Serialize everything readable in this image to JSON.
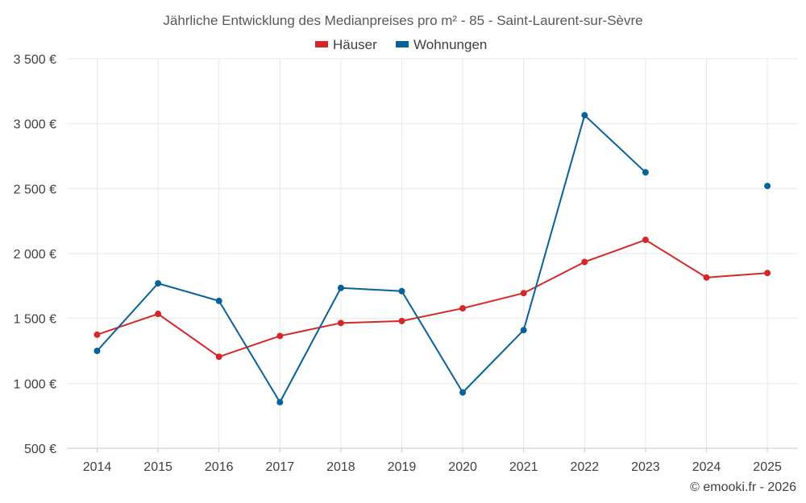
{
  "chart_data": {
    "type": "line",
    "title": "Jährliche Entwicklung des Medianpreises pro m² - 85 - Saint-Laurent-sur-Sèvre",
    "xlabel": "",
    "ylabel": "",
    "categories": [
      "2014",
      "2015",
      "2016",
      "2017",
      "2018",
      "2019",
      "2020",
      "2021",
      "2022",
      "2023",
      "2024",
      "2025"
    ],
    "ylim": [
      500,
      3500
    ],
    "yticks": [
      500,
      1000,
      1500,
      2000,
      2500,
      3000,
      3500
    ],
    "ytick_labels": [
      "500 €",
      "1 000 €",
      "1 500 €",
      "2 000 €",
      "2 500 €",
      "3 000 €",
      "3 500 €"
    ],
    "grid": true,
    "legend_position": "top-center",
    "series": [
      {
        "name": "Häuser",
        "color": "#d62728",
        "values": [
          1375,
          1535,
          1205,
          1365,
          1465,
          1480,
          1578,
          1695,
          1935,
          2105,
          1815,
          1850
        ]
      },
      {
        "name": "Wohnungen",
        "color": "#08629a",
        "values": [
          1250,
          1770,
          1635,
          855,
          1735,
          1710,
          930,
          1410,
          3065,
          2625,
          null,
          2520
        ]
      }
    ]
  },
  "credit": "© emooki.fr - 2026"
}
